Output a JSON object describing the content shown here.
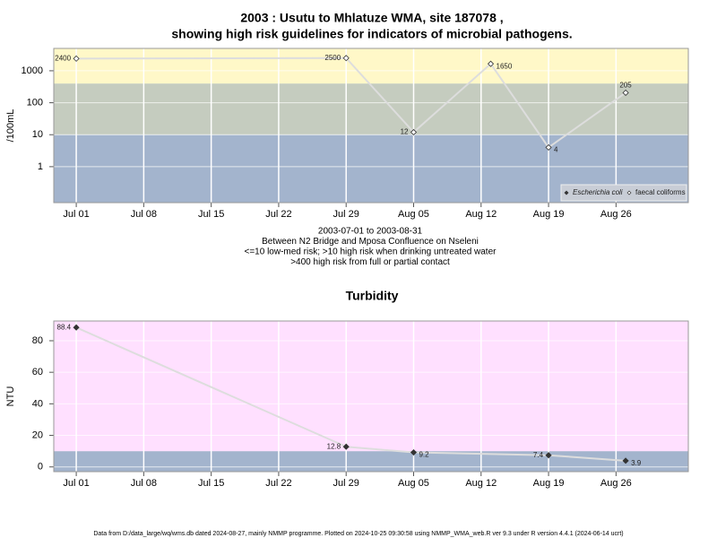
{
  "chart_data": [
    {
      "type": "line",
      "title": [
        "2003 : Usutu to Mhlatuze WMA, site 187078 ,",
        "showing high risk guidelines for indicators of microbial pathogens."
      ],
      "subtitle": [
        "2003-07-01 to 2003-08-31",
        "Between N2 Bridge and Mposa Confluence on Nseleni",
        "<=10 low-med risk; >10 high risk when drinking untreated water",
        ">400 high risk from full or partial contact"
      ],
      "y_label": "/100mL",
      "log_y": true,
      "x": [
        "2003-07-01",
        "2003-07-29",
        "2003-08-05",
        "2003-08-13",
        "2003-08-19",
        "2003-08-27"
      ],
      "series": [
        {
          "name": "Escherichia coli",
          "marker": "filled",
          "color": "#333333",
          "values": [
            null,
            null,
            null,
            null,
            null,
            null
          ]
        },
        {
          "name": "faecal coliforms",
          "marker": "open",
          "color": "#333333",
          "values": [
            2400,
            2500,
            12,
            1650,
            4,
            205
          ]
        }
      ],
      "xlim": [
        "2003-06-28T16:00Z",
        "2003-09-02T12:00Z"
      ],
      "xticks": [
        {
          "value": "2003-07-01",
          "label": "Jul 01"
        },
        {
          "value": "2003-07-08",
          "label": "Jul 08"
        },
        {
          "value": "2003-07-15",
          "label": "Jul 15"
        },
        {
          "value": "2003-07-22",
          "label": "Jul 22"
        },
        {
          "value": "2003-07-29",
          "label": "Jul 29"
        },
        {
          "value": "2003-08-05",
          "label": "Aug 05"
        },
        {
          "value": "2003-08-12",
          "label": "Aug 12"
        },
        {
          "value": "2003-08-19",
          "label": "Aug 19"
        },
        {
          "value": "2003-08-26",
          "label": "Aug 26"
        }
      ],
      "ylim": [
        0.075,
        5000
      ],
      "yticks": [
        1,
        10,
        100,
        1000
      ],
      "bands": [
        {
          "to": 10,
          "color": "#a3b4cd"
        },
        {
          "from": 10,
          "to": 400,
          "color": "#c5ccbf"
        },
        {
          "from": 400,
          "color": "#fff8c8"
        }
      ],
      "line_color": "#dddddd",
      "grid": true,
      "legend": "bottom-right"
    },
    {
      "type": "line",
      "title": "Turbidity",
      "y_label": "NTU",
      "x": [
        "2003-07-01",
        "2003-07-29",
        "2003-08-05",
        "2003-08-19",
        "2003-08-27"
      ],
      "series": [
        {
          "marker": "filled",
          "color": "#333333",
          "values": [
            88.4,
            12.8,
            9.2,
            7.4,
            3.9
          ]
        }
      ],
      "xlim": [
        "2003-06-28T16:00Z",
        "2003-09-02T12:00Z"
      ],
      "xticks": [
        {
          "value": "2003-07-01",
          "label": "Jul 01"
        },
        {
          "value": "2003-07-08",
          "label": "Jul 08"
        },
        {
          "value": "2003-07-15",
          "label": "Jul 15"
        },
        {
          "value": "2003-07-22",
          "label": "Jul 22"
        },
        {
          "value": "2003-07-29",
          "label": "Jul 29"
        },
        {
          "value": "2003-08-05",
          "label": "Aug 05"
        },
        {
          "value": "2003-08-12",
          "label": "Aug 12"
        },
        {
          "value": "2003-08-19",
          "label": "Aug 19"
        },
        {
          "value": "2003-08-26",
          "label": "Aug 26"
        }
      ],
      "ylim": [
        -3,
        92.5
      ],
      "yticks": [
        0,
        20,
        40,
        60,
        80
      ],
      "bands": [
        {
          "to": 10,
          "color": "#a3b4cd"
        },
        {
          "from": 10,
          "color": "#ffe0ff"
        }
      ],
      "line_color": "#dddddd",
      "grid": true
    }
  ],
  "footnote": "Data from D:/data_large/wq/wms.db dated 2024-08-27, mainly NMMP programme. Plotted on 2024-10-25 09:30:58 using NMMP_WMA_web.R ver 9.3 under R version 4.4.1 (2024-06-14 ucrt)"
}
